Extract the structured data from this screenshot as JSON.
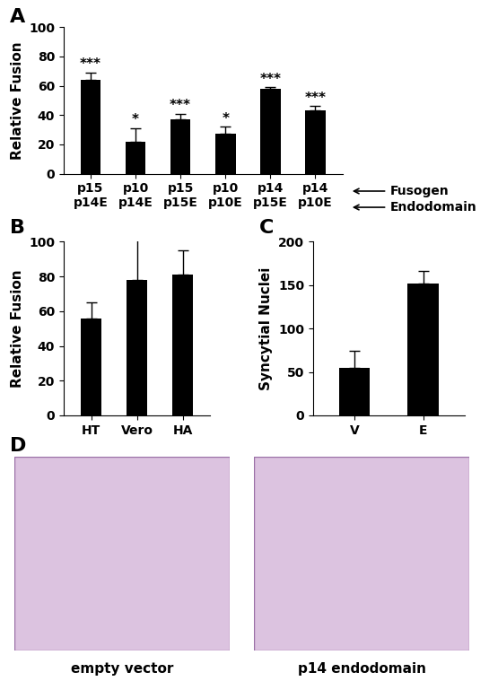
{
  "chart_data": [
    {
      "type": "bar",
      "title": "A",
      "categories": [
        "p15\np14E",
        "p10\np14E",
        "p15\np15E",
        "p10\np10E",
        "p14\np15E",
        "p14\np10E"
      ],
      "values": [
        64,
        22,
        37,
        27,
        58,
        43
      ],
      "errors": [
        5,
        9,
        4,
        5,
        1,
        3
      ],
      "annotations": [
        "***",
        "*",
        "***",
        "*",
        "***",
        "***"
      ],
      "row_labels": [
        "Fusogen",
        "Endodomain"
      ],
      "y_label": "Relative Fusion",
      "color": "#000000",
      "ylim": [
        0,
        100
      ],
      "yticks": [
        0,
        20,
        40,
        60,
        80,
        100
      ]
    },
    {
      "type": "bar",
      "title": "B",
      "categories": [
        "HT",
        "Vero",
        "HA"
      ],
      "values": [
        56,
        78,
        81
      ],
      "errors": [
        9,
        24,
        14
      ],
      "y_label": "Relative Fusion",
      "color": "#000000",
      "ylim": [
        0,
        100
      ],
      "yticks": [
        0,
        20,
        40,
        60,
        80,
        100
      ]
    },
    {
      "type": "bar",
      "title": "C",
      "categories": [
        "V",
        "E"
      ],
      "values": [
        55,
        152
      ],
      "errors": [
        19,
        14
      ],
      "y_label": "Syncytial Nuclei",
      "color": "#000000",
      "ylim": [
        0,
        200
      ],
      "yticks": [
        0,
        50,
        100,
        150,
        200
      ]
    }
  ],
  "images": {
    "title": "D",
    "captions": [
      "empty vector",
      "p14 endodomain"
    ]
  }
}
